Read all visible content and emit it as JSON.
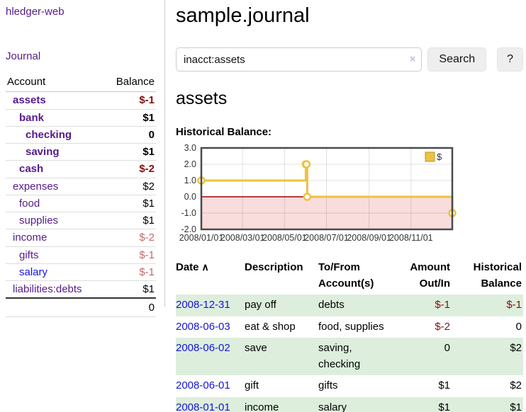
{
  "app": {
    "title": "hledger-web"
  },
  "sidebar": {
    "journal_link": "Journal",
    "accounts": {
      "headers": {
        "account": "Account",
        "balance": "Balance"
      },
      "rows": [
        {
          "name": "assets",
          "balance": "$-1"
        },
        {
          "name": "bank",
          "balance": "$1"
        },
        {
          "name": "checking",
          "balance": "0"
        },
        {
          "name": "saving",
          "balance": "$1"
        },
        {
          "name": "cash",
          "balance": "$-2"
        },
        {
          "name": "expenses",
          "balance": "$2"
        },
        {
          "name": "food",
          "balance": "$1"
        },
        {
          "name": "supplies",
          "balance": "$1"
        },
        {
          "name": "income",
          "balance": "$-2"
        },
        {
          "name": "gifts",
          "balance": "$-1"
        },
        {
          "name": "salary",
          "balance": "$-1"
        },
        {
          "name": "liabilities:debts",
          "balance": "$1"
        }
      ],
      "total": "0"
    }
  },
  "main": {
    "title": "sample.journal",
    "search": {
      "value": "inacct:assets",
      "clear_icon": "×",
      "search_button": "Search",
      "help_button": "?"
    },
    "account_heading": "assets",
    "chart_title": "Historical Balance:",
    "register": {
      "sort_indicator": "∧",
      "headers": [
        "Date",
        "Description",
        "To/From Account(s)",
        "Amount Out/In",
        "Historical Balance"
      ],
      "rows": [
        {
          "date": "2008-12-31",
          "description": "pay off",
          "accounts": "debts",
          "amount": "$-1",
          "balance": "$-1"
        },
        {
          "date": "2008-06-03",
          "description": "eat & shop",
          "accounts": "food, supplies",
          "amount": "$-2",
          "balance": "0"
        },
        {
          "date": "2008-06-02",
          "description": "save",
          "accounts": "saving, checking",
          "amount": "0",
          "balance": "$2"
        },
        {
          "date": "2008-06-01",
          "description": "gift",
          "accounts": "gifts",
          "amount": "$1",
          "balance": "$2"
        },
        {
          "date": "2008-01-01",
          "description": "income",
          "accounts": "salary",
          "amount": "$1",
          "balance": "$1"
        }
      ]
    }
  },
  "colors": {
    "accent_purple": "#551a8b",
    "link_blue": "#1515d6",
    "negative_red": "#821010",
    "negative_soft_red": "#c06a6a",
    "row_stripe_green": "#ddeedd",
    "series_yellow": "#edc240",
    "negative_region_pink": "#f9dcdc",
    "zero_line_red": "#a40000"
  },
  "chart_data": {
    "type": "line",
    "step": true,
    "title": "Historical Balance",
    "series": [
      {
        "name": "$",
        "color": "#edc240",
        "points": [
          [
            "2008-01-01",
            1
          ],
          [
            "2008-06-01",
            2
          ],
          [
            "2008-06-02",
            2
          ],
          [
            "2008-06-03",
            0
          ],
          [
            "2008-12-31",
            -1
          ]
        ]
      }
    ],
    "xlim": [
      "2008-01-01",
      "2008-12-31"
    ],
    "ylim": [
      -2,
      3
    ],
    "y_ticks": [
      3,
      2,
      1,
      0,
      -1,
      -2
    ],
    "y_tick_labels": [
      "3.0",
      "2.0",
      "1.0",
      "0.0",
      "-1.0",
      "-2.0"
    ],
    "x_ticks": [
      "2008-01-01",
      "2008-03-01",
      "2008-05-01",
      "2008-07-01",
      "2008-09-01",
      "2008-11-01"
    ],
    "x_tick_labels": [
      "2008/01/01",
      "2008/03/01",
      "2008/05/01",
      "2008/07/01",
      "2008/09/01",
      "2008/11/01"
    ],
    "legend": {
      "position": "top-right",
      "label": "$"
    },
    "grid": true,
    "zero_line_color": "#a40000",
    "negative_region_fill": "#f9dcdc"
  }
}
